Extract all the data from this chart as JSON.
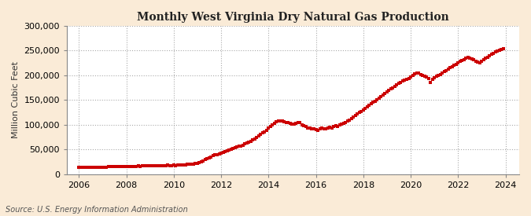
{
  "title": "Monthly West Virginia Dry Natural Gas Production",
  "ylabel": "Million Cubic Feet",
  "source": "Source: U.S. Energy Information Administration",
  "background_color": "#faebd7",
  "plot_background_color": "#ffffff",
  "dot_color": "#cc0000",
  "grid_color": "#aaaaaa",
  "xlim_start": 2005.5,
  "xlim_end": 2024.58,
  "ylim_min": 0,
  "ylim_max": 300000,
  "yticks": [
    0,
    50000,
    100000,
    150000,
    200000,
    250000,
    300000
  ],
  "xticks": [
    2006,
    2008,
    2010,
    2012,
    2014,
    2016,
    2018,
    2020,
    2022,
    2024
  ],
  "data": [
    [
      2006.0,
      13500
    ],
    [
      2006.083,
      13200
    ],
    [
      2006.167,
      13800
    ],
    [
      2006.25,
      13600
    ],
    [
      2006.333,
      14000
    ],
    [
      2006.417,
      13900
    ],
    [
      2006.5,
      14200
    ],
    [
      2006.583,
      14100
    ],
    [
      2006.667,
      14300
    ],
    [
      2006.75,
      14500
    ],
    [
      2006.833,
      14200
    ],
    [
      2006.917,
      14000
    ],
    [
      2007.0,
      14500
    ],
    [
      2007.083,
      14200
    ],
    [
      2007.167,
      14600
    ],
    [
      2007.25,
      14800
    ],
    [
      2007.333,
      15000
    ],
    [
      2007.417,
      14900
    ],
    [
      2007.5,
      15200
    ],
    [
      2007.583,
      15000
    ],
    [
      2007.667,
      15300
    ],
    [
      2007.75,
      15500
    ],
    [
      2007.833,
      15200
    ],
    [
      2007.917,
      15100
    ],
    [
      2008.0,
      15500
    ],
    [
      2008.083,
      15300
    ],
    [
      2008.167,
      15800
    ],
    [
      2008.25,
      16000
    ],
    [
      2008.333,
      16200
    ],
    [
      2008.417,
      16100
    ],
    [
      2008.5,
      16400
    ],
    [
      2008.583,
      16200
    ],
    [
      2008.667,
      16600
    ],
    [
      2008.75,
      16800
    ],
    [
      2008.833,
      16500
    ],
    [
      2008.917,
      16300
    ],
    [
      2009.0,
      16800
    ],
    [
      2009.083,
      16600
    ],
    [
      2009.167,
      17000
    ],
    [
      2009.25,
      17200
    ],
    [
      2009.333,
      17400
    ],
    [
      2009.417,
      17100
    ],
    [
      2009.5,
      17600
    ],
    [
      2009.583,
      17400
    ],
    [
      2009.667,
      17700
    ],
    [
      2009.75,
      17900
    ],
    [
      2009.833,
      17600
    ],
    [
      2009.917,
      17400
    ],
    [
      2010.0,
      18000
    ],
    [
      2010.083,
      17800
    ],
    [
      2010.167,
      18300
    ],
    [
      2010.25,
      18500
    ],
    [
      2010.333,
      18800
    ],
    [
      2010.417,
      18600
    ],
    [
      2010.5,
      19200
    ],
    [
      2010.583,
      19500
    ],
    [
      2010.667,
      20000
    ],
    [
      2010.75,
      20500
    ],
    [
      2010.833,
      21000
    ],
    [
      2010.917,
      21500
    ],
    [
      2011.0,
      22500
    ],
    [
      2011.083,
      23500
    ],
    [
      2011.167,
      25000
    ],
    [
      2011.25,
      27000
    ],
    [
      2011.333,
      29000
    ],
    [
      2011.417,
      31000
    ],
    [
      2011.5,
      33000
    ],
    [
      2011.583,
      35000
    ],
    [
      2011.667,
      37000
    ],
    [
      2011.75,
      39000
    ],
    [
      2011.833,
      40000
    ],
    [
      2011.917,
      41000
    ],
    [
      2012.0,
      43000
    ],
    [
      2012.083,
      44500
    ],
    [
      2012.167,
      46000
    ],
    [
      2012.25,
      47500
    ],
    [
      2012.333,
      49000
    ],
    [
      2012.417,
      50000
    ],
    [
      2012.5,
      51500
    ],
    [
      2012.583,
      53000
    ],
    [
      2012.667,
      54500
    ],
    [
      2012.75,
      56000
    ],
    [
      2012.833,
      57500
    ],
    [
      2012.917,
      59000
    ],
    [
      2013.0,
      61000
    ],
    [
      2013.083,
      63000
    ],
    [
      2013.167,
      65000
    ],
    [
      2013.25,
      67000
    ],
    [
      2013.333,
      69000
    ],
    [
      2013.417,
      71000
    ],
    [
      2013.5,
      74000
    ],
    [
      2013.583,
      77000
    ],
    [
      2013.667,
      80000
    ],
    [
      2013.75,
      83000
    ],
    [
      2013.833,
      86000
    ],
    [
      2013.917,
      89000
    ],
    [
      2014.0,
      93000
    ],
    [
      2014.083,
      97000
    ],
    [
      2014.167,
      100000
    ],
    [
      2014.25,
      103000
    ],
    [
      2014.333,
      106000
    ],
    [
      2014.417,
      107000
    ],
    [
      2014.5,
      108000
    ],
    [
      2014.583,
      107000
    ],
    [
      2014.667,
      106000
    ],
    [
      2014.75,
      105000
    ],
    [
      2014.833,
      104000
    ],
    [
      2014.917,
      103000
    ],
    [
      2015.0,
      102000
    ],
    [
      2015.083,
      101000
    ],
    [
      2015.167,
      103000
    ],
    [
      2015.25,
      105000
    ],
    [
      2015.333,
      104000
    ],
    [
      2015.417,
      100000
    ],
    [
      2015.5,
      98000
    ],
    [
      2015.583,
      96000
    ],
    [
      2015.667,
      94000
    ],
    [
      2015.75,
      93000
    ],
    [
      2015.833,
      92000
    ],
    [
      2015.917,
      91000
    ],
    [
      2016.0,
      90000
    ],
    [
      2016.083,
      89000
    ],
    [
      2016.167,
      91000
    ],
    [
      2016.25,
      93000
    ],
    [
      2016.333,
      92000
    ],
    [
      2016.417,
      91000
    ],
    [
      2016.5,
      93000
    ],
    [
      2016.583,
      95000
    ],
    [
      2016.667,
      94000
    ],
    [
      2016.75,
      96000
    ],
    [
      2016.833,
      98000
    ],
    [
      2016.917,
      97000
    ],
    [
      2017.0,
      99000
    ],
    [
      2017.083,
      101000
    ],
    [
      2017.167,
      103000
    ],
    [
      2017.25,
      105000
    ],
    [
      2017.333,
      107000
    ],
    [
      2017.417,
      110000
    ],
    [
      2017.5,
      113000
    ],
    [
      2017.583,
      116000
    ],
    [
      2017.667,
      119000
    ],
    [
      2017.75,
      122000
    ],
    [
      2017.833,
      125000
    ],
    [
      2017.917,
      127000
    ],
    [
      2018.0,
      130000
    ],
    [
      2018.083,
      133000
    ],
    [
      2018.167,
      136000
    ],
    [
      2018.25,
      139000
    ],
    [
      2018.333,
      142000
    ],
    [
      2018.417,
      145000
    ],
    [
      2018.5,
      148000
    ],
    [
      2018.583,
      151000
    ],
    [
      2018.667,
      154000
    ],
    [
      2018.75,
      157000
    ],
    [
      2018.833,
      160000
    ],
    [
      2018.917,
      163000
    ],
    [
      2019.0,
      166000
    ],
    [
      2019.083,
      169000
    ],
    [
      2019.167,
      172000
    ],
    [
      2019.25,
      175000
    ],
    [
      2019.333,
      178000
    ],
    [
      2019.417,
      181000
    ],
    [
      2019.5,
      184000
    ],
    [
      2019.583,
      186000
    ],
    [
      2019.667,
      188000
    ],
    [
      2019.75,
      190000
    ],
    [
      2019.833,
      192000
    ],
    [
      2019.917,
      194000
    ],
    [
      2020.0,
      197000
    ],
    [
      2020.083,
      200000
    ],
    [
      2020.167,
      203000
    ],
    [
      2020.25,
      205000
    ],
    [
      2020.333,
      204000
    ],
    [
      2020.417,
      202000
    ],
    [
      2020.5,
      200000
    ],
    [
      2020.583,
      198000
    ],
    [
      2020.667,
      196000
    ],
    [
      2020.75,
      194000
    ],
    [
      2020.833,
      185000
    ],
    [
      2020.917,
      192000
    ],
    [
      2021.0,
      195000
    ],
    [
      2021.083,
      198000
    ],
    [
      2021.167,
      200000
    ],
    [
      2021.25,
      202000
    ],
    [
      2021.333,
      205000
    ],
    [
      2021.417,
      208000
    ],
    [
      2021.5,
      210000
    ],
    [
      2021.583,
      212000
    ],
    [
      2021.667,
      215000
    ],
    [
      2021.75,
      218000
    ],
    [
      2021.833,
      220000
    ],
    [
      2021.917,
      222000
    ],
    [
      2022.0,
      225000
    ],
    [
      2022.083,
      228000
    ],
    [
      2022.167,
      230000
    ],
    [
      2022.25,
      232000
    ],
    [
      2022.333,
      234000
    ],
    [
      2022.417,
      236000
    ],
    [
      2022.5,
      235000
    ],
    [
      2022.583,
      233000
    ],
    [
      2022.667,
      231000
    ],
    [
      2022.75,
      229000
    ],
    [
      2022.833,
      227000
    ],
    [
      2022.917,
      225000
    ],
    [
      2023.0,
      228000
    ],
    [
      2023.083,
      231000
    ],
    [
      2023.167,
      234000
    ],
    [
      2023.25,
      237000
    ],
    [
      2023.333,
      240000
    ],
    [
      2023.417,
      243000
    ],
    [
      2023.5,
      245000
    ],
    [
      2023.583,
      247000
    ],
    [
      2023.667,
      249000
    ],
    [
      2023.75,
      251000
    ],
    [
      2023.833,
      252000
    ],
    [
      2023.917,
      254000
    ]
  ]
}
